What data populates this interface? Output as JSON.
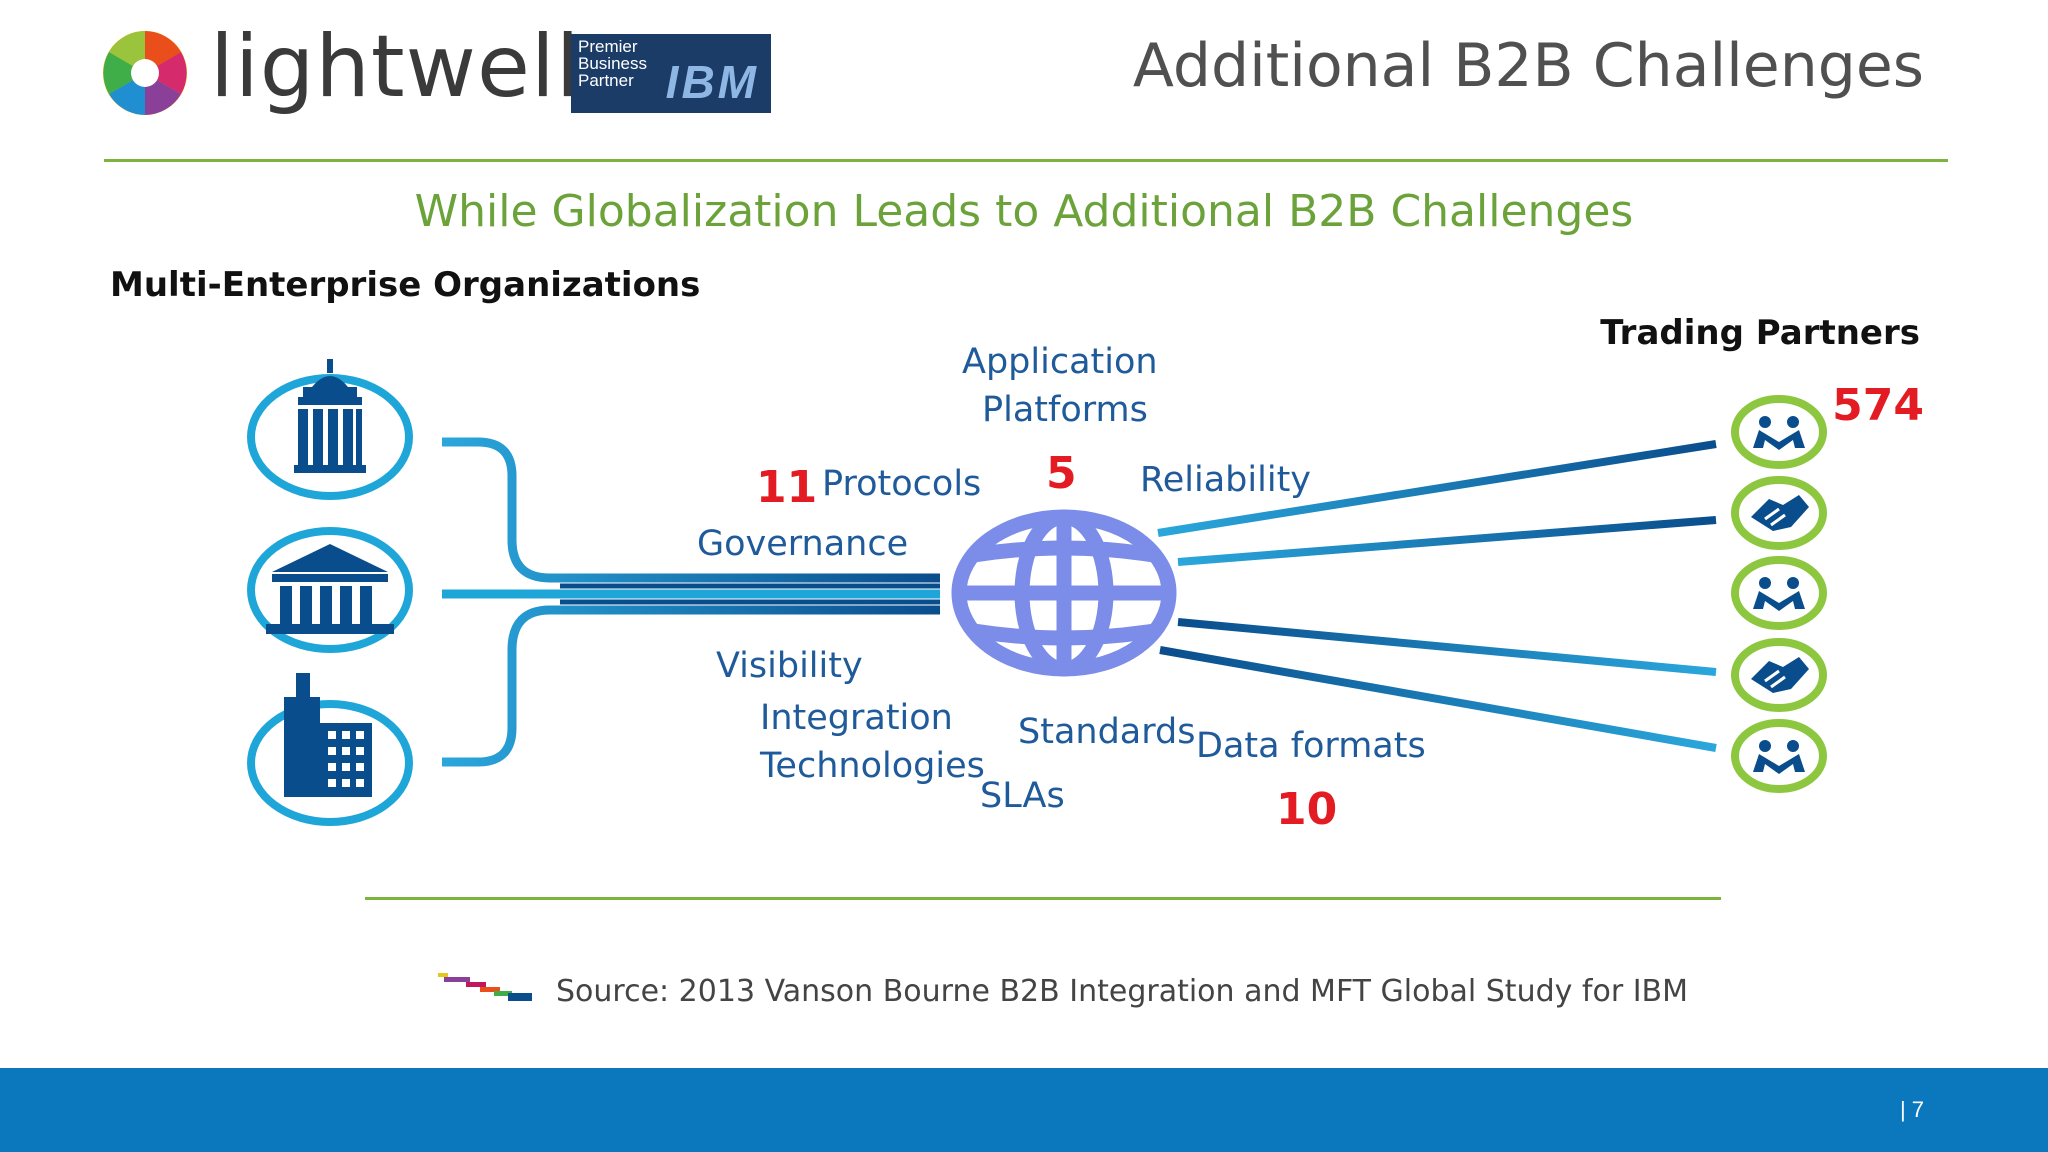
{
  "header": {
    "brand_name": "lightwell",
    "badge": {
      "line1": "Premier",
      "line2": "Business",
      "line3": "Partner",
      "mark": "IBM"
    },
    "title": "Additional B2B Challenges"
  },
  "subtitle": "While Globalization Leads to Additional B2B Challenges",
  "left_heading": "Multi-Enterprise Organizations",
  "right_heading": "Trading Partners",
  "labels": {
    "application_platforms_line1": "Application",
    "application_platforms_line2": "Platforms",
    "protocols": "Protocols",
    "reliability": "Reliability",
    "governance": "Governance",
    "visibility": "Visibility",
    "integration_line1": "Integration",
    "integration_line2": "Technologies",
    "standards": "Standards",
    "data_formats": "Data formats",
    "slas": "SLAs"
  },
  "numbers": {
    "protocols": "11",
    "application_platforms": "5",
    "data_formats": "10",
    "trading_partners": "574"
  },
  "icons": {
    "enterprises": [
      "capitol-building-icon",
      "bank-building-icon",
      "office-tower-icon"
    ],
    "partners": [
      "people-icon",
      "handshake-icon",
      "people-icon",
      "handshake-icon",
      "people-icon"
    ],
    "center": "globe-icon"
  },
  "source": "Source: 2013 Vanson Bourne B2B Integration and MFT Global Study for IBM",
  "page_number": "| 7",
  "colors": {
    "green": "#7db33f",
    "blue_dark": "#0a4d8c",
    "blue_light": "#1fa6d8",
    "red": "#e31b23",
    "footer_blue": "#0b77bd",
    "globe": "#7b8de8"
  }
}
